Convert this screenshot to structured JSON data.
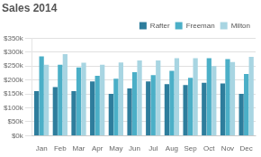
{
  "chart_data": {
    "type": "bar",
    "title": "Sales 2014",
    "categories": [
      "Jan",
      "Feb",
      "Mar",
      "Apr",
      "May",
      "Jun",
      "Jul",
      "Aug",
      "Sep",
      "Oct",
      "Nov",
      "Dec"
    ],
    "series": [
      {
        "name": "Rafter",
        "color": "#2E7D9C",
        "values": [
          160000,
          175000,
          160000,
          195000,
          150000,
          170000,
          195000,
          185000,
          182000,
          190000,
          188000,
          150000
        ]
      },
      {
        "name": "Freeman",
        "color": "#4BAFC7",
        "values": [
          285000,
          255000,
          245000,
          215000,
          205000,
          228000,
          218000,
          233000,
          208000,
          278000,
          275000,
          222000
        ]
      },
      {
        "name": "Milton",
        "color": "#A8D5E2",
        "values": [
          255000,
          293000,
          262000,
          255000,
          263000,
          270000,
          270000,
          278000,
          278000,
          250000,
          265000,
          283000
        ]
      }
    ],
    "ylim": [
      0,
      350000
    ],
    "yticks": [
      {
        "value": 0,
        "label": "$0k"
      },
      {
        "value": 50000,
        "label": "$50k"
      },
      {
        "value": 100000,
        "label": "$100k"
      },
      {
        "value": 150000,
        "label": "$150k"
      },
      {
        "value": 200000,
        "label": "$200k"
      },
      {
        "value": 250000,
        "label": "$250k"
      },
      {
        "value": 300000,
        "label": "$300k"
      },
      {
        "value": 350000,
        "label": "$350k"
      }
    ],
    "grid": true,
    "legend": "upper right"
  }
}
